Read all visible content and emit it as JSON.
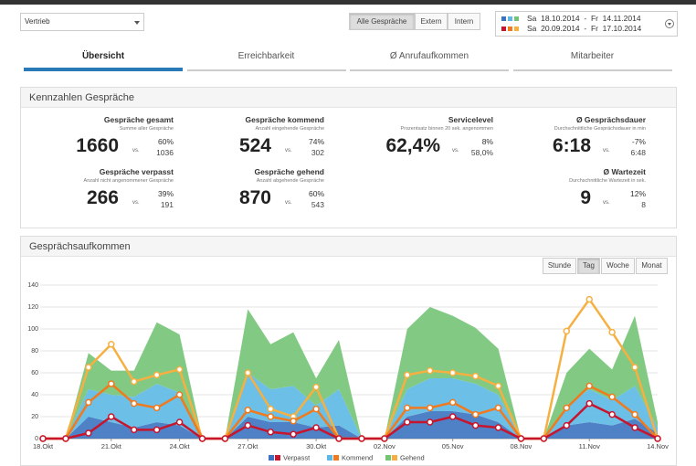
{
  "header": {
    "department": "Vertrieb",
    "filters": [
      "Alle Gespräche",
      "Extern",
      "Intern"
    ],
    "active_filter": 0,
    "periods": [
      "Sa  18.10.2014  -  Fr  14.11.2014",
      "Sa  20.09.2014  -  Fr  17.10.2014"
    ]
  },
  "tabs": [
    "Übersicht",
    "Erreichbarkeit",
    "Ø Anrufaufkommen",
    "Mitarbeiter"
  ],
  "active_tab": 0,
  "kpi_panel": {
    "title": "Kennzahlen Gespräche",
    "vs_label": "vs.",
    "kpis": [
      {
        "title": "Gespräche gesamt",
        "subtitle": "Summe aller Gespräche",
        "value": "1660",
        "change": "60%",
        "compare": "1036"
      },
      {
        "title": "Gespräche kommend",
        "subtitle": "Anzahl eingehende Gespräche",
        "value": "524",
        "change": "74%",
        "compare": "302"
      },
      {
        "title": "Servicelevel",
        "subtitle": "Prozentsatz binnen 20 sek. angenommen",
        "value": "62,4%",
        "change": "8%",
        "compare": "58,0%"
      },
      {
        "title": "Ø Gesprächsdauer",
        "subtitle": "Durchschnittliche Gesprächsdauer in min",
        "value": "6:18",
        "change": "-7%",
        "compare": "6:48"
      },
      {
        "title": "Gespräche verpasst",
        "subtitle": "Anzahl nicht angenommener Gespräche",
        "value": "266",
        "change": "39%",
        "compare": "191"
      },
      {
        "title": "Gespräche gehend",
        "subtitle": "Anzahl abgehende Gespräche",
        "value": "870",
        "change": "60%",
        "compare": "543"
      },
      {
        "title": "Ø Wartezeit",
        "subtitle": "Durchschnittliche Wartezeit in sek.",
        "value": "9",
        "change": "12%",
        "compare": "8"
      }
    ]
  },
  "chart_data": {
    "type": "area",
    "title": "Gesprächsaufkommen",
    "granularity": [
      "Stunde",
      "Tag",
      "Woche",
      "Monat"
    ],
    "active_granularity": 1,
    "stacked": true,
    "grid": true,
    "categories": [
      "18.Okt",
      null,
      null,
      "21.Okt",
      null,
      null,
      "24.Okt",
      null,
      null,
      "27.Okt",
      null,
      null,
      "30.Okt",
      null,
      null,
      "02.Nov",
      null,
      null,
      "05.Nov",
      null,
      null,
      "08.Nov",
      null,
      null,
      "11.Nov",
      null,
      null,
      "14.Nov"
    ],
    "ylim": [
      0,
      140
    ],
    "yticks": [
      0,
      20,
      40,
      60,
      80,
      100,
      120,
      140
    ],
    "series": [
      {
        "name": "Verpasst",
        "color": "#3b73c0",
        "compare_color": "#c8142c",
        "values": [
          0,
          0,
          20,
          15,
          10,
          15,
          12,
          0,
          0,
          20,
          15,
          15,
          10,
          12,
          0,
          0,
          20,
          25,
          25,
          22,
          15,
          0,
          0,
          12,
          15,
          12,
          18,
          5
        ],
        "compare_values": [
          0,
          0,
          5,
          20,
          8,
          8,
          15,
          0,
          0,
          12,
          6,
          4,
          10,
          0,
          0,
          0,
          15,
          15,
          20,
          12,
          10,
          0,
          0,
          12,
          32,
          22,
          10,
          0
        ]
      },
      {
        "name": "Kommend",
        "color": "#5cb8e4",
        "compare_color": "#f07a1d",
        "values": [
          0,
          0,
          25,
          25,
          28,
          35,
          30,
          0,
          0,
          40,
          30,
          33,
          20,
          33,
          0,
          0,
          25,
          30,
          30,
          28,
          25,
          0,
          0,
          18,
          30,
          23,
          30,
          5
        ],
        "compare_values": [
          0,
          0,
          33,
          50,
          32,
          28,
          40,
          0,
          0,
          26,
          20,
          16,
          27,
          0,
          0,
          0,
          28,
          28,
          33,
          22,
          28,
          0,
          0,
          28,
          48,
          38,
          22,
          0
        ]
      },
      {
        "name": "Gehend",
        "color": "#74c476",
        "compare_color": "#f5b041",
        "values": [
          0,
          0,
          33,
          22,
          24,
          56,
          53,
          0,
          0,
          58,
          41,
          49,
          25,
          45,
          0,
          0,
          55,
          65,
          57,
          51,
          42,
          0,
          0,
          30,
          37,
          28,
          64,
          5
        ],
        "compare_values": [
          0,
          0,
          65,
          86,
          52,
          58,
          63,
          0,
          0,
          60,
          27,
          20,
          47,
          0,
          0,
          0,
          58,
          62,
          60,
          57,
          48,
          0,
          0,
          98,
          127,
          97,
          65,
          0
        ]
      }
    ]
  }
}
